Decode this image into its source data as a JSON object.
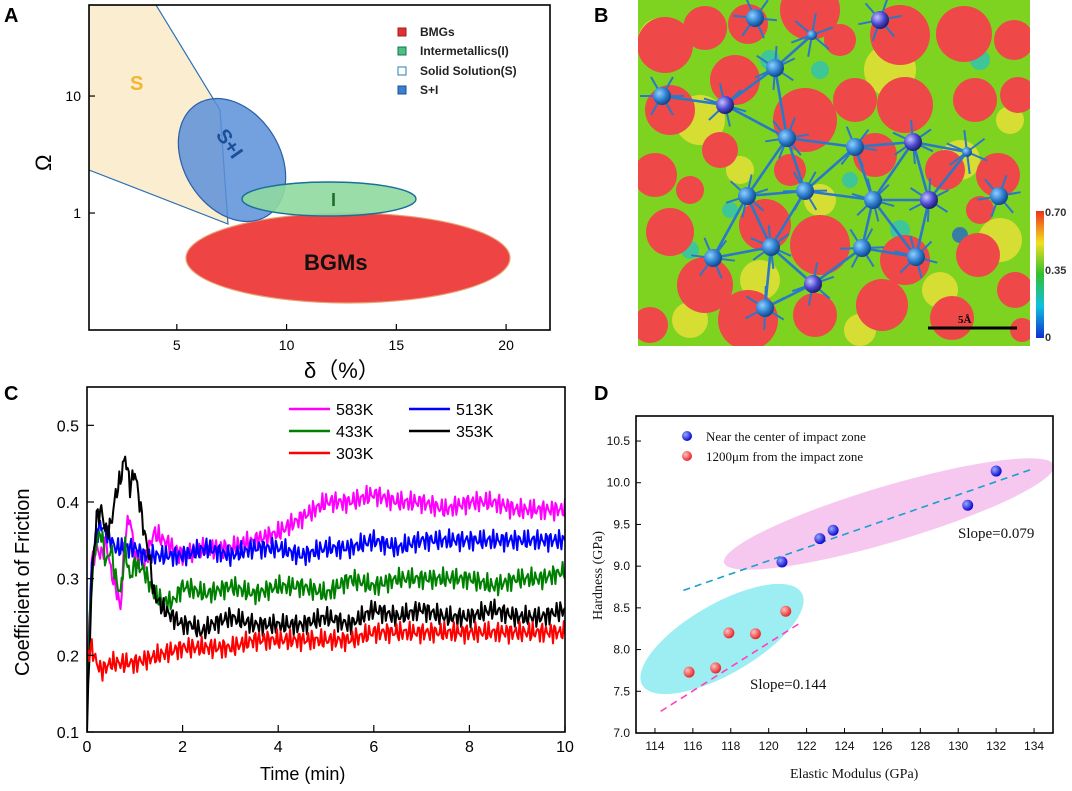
{
  "panel_labels": {
    "a": "A",
    "b": "B",
    "c": "C",
    "d": "D"
  },
  "colors": {
    "bmg": "#ef4444",
    "intermetallic": "#8fd9a0",
    "solid_solution": "#fbeed0",
    "si": "#5b8fd8",
    "c583": "#ff00ff",
    "c513": "#0000ff",
    "c433": "#008000",
    "c353": "#000000",
    "c303": "#ff0000",
    "d_blue": "#1a1aff",
    "d_red": "#ff4444",
    "d_pink": "#f6c8f0",
    "d_cyan": "#9ceef2"
  },
  "chart_data": [
    {
      "panel": "A",
      "type": "scatter",
      "title": "",
      "xlabel": "δ（%）",
      "ylabel": "Ω",
      "xlim": [
        1,
        22
      ],
      "ylim_log": [
        0.1,
        60
      ],
      "xticks": [
        "5",
        "10",
        "15",
        "20"
      ],
      "xtick_values": [
        5,
        10,
        15,
        20
      ],
      "yticks": [
        "1",
        "10"
      ],
      "ytick_values": [
        1,
        10
      ],
      "legend": [
        {
          "name": "BMGs",
          "swatch": "bmg"
        },
        {
          "name": "Intermetallics(I)",
          "swatch": "intermetallic"
        },
        {
          "name": "Solid Solution(S)",
          "swatch": "solid_solution"
        },
        {
          "name": "S+I",
          "swatch": "si"
        }
      ],
      "regions": [
        {
          "name": "S",
          "label": "S"
        },
        {
          "name": "S+I",
          "label": "S+I"
        },
        {
          "name": "I",
          "label": "I"
        },
        {
          "name": "BGMs",
          "label": "BGMs"
        }
      ]
    },
    {
      "panel": "B",
      "type": "heatmap",
      "colorbar_ticks": [
        "0.70",
        "0.35",
        "0"
      ],
      "colorbar_values": [
        0.7,
        0.35,
        0
      ],
      "scale_bar": "5Å"
    },
    {
      "panel": "C",
      "type": "line",
      "xlabel": "Time (min)",
      "ylabel": "Coefficient of Friction",
      "xlim": [
        0,
        10
      ],
      "ylim": [
        0.1,
        0.55
      ],
      "xticks": [
        "0",
        "2",
        "4",
        "6",
        "8",
        "10"
      ],
      "yticks": [
        "0.1",
        "0.2",
        "0.3",
        "0.4",
        "0.5"
      ],
      "series": [
        {
          "name": "583K",
          "color": "#ff00ff",
          "x": [
            0,
            0.1,
            0.2,
            0.3,
            0.4,
            0.5,
            0.6,
            0.7,
            0.8,
            0.9,
            1.0,
            1.2,
            1.4,
            1.6,
            1.8,
            2,
            2.5,
            3,
            3.5,
            4,
            4.5,
            5,
            5.5,
            6,
            6.5,
            7,
            7.5,
            8,
            8.5,
            9,
            9.5,
            10
          ],
          "y": [
            0.17,
            0.32,
            0.34,
            0.33,
            0.35,
            0.31,
            0.29,
            0.26,
            0.36,
            0.38,
            0.33,
            0.32,
            0.36,
            0.35,
            0.34,
            0.33,
            0.34,
            0.34,
            0.35,
            0.36,
            0.38,
            0.4,
            0.4,
            0.41,
            0.4,
            0.4,
            0.39,
            0.4,
            0.4,
            0.39,
            0.39,
            0.39
          ]
        },
        {
          "name": "513K",
          "color": "#0000ff",
          "x": [
            0,
            0.1,
            0.2,
            0.3,
            0.4,
            0.5,
            0.6,
            0.8,
            1.0,
            1.2,
            1.5,
            2,
            2.5,
            3,
            3.5,
            4,
            4.5,
            5,
            5.5,
            6,
            6.5,
            7,
            7.5,
            8,
            8.5,
            9,
            9.5,
            10
          ],
          "y": [
            0.16,
            0.32,
            0.36,
            0.37,
            0.36,
            0.35,
            0.34,
            0.34,
            0.34,
            0.33,
            0.33,
            0.33,
            0.34,
            0.33,
            0.34,
            0.34,
            0.33,
            0.34,
            0.34,
            0.35,
            0.34,
            0.35,
            0.35,
            0.35,
            0.35,
            0.35,
            0.35,
            0.35
          ]
        },
        {
          "name": "433K",
          "color": "#008000",
          "x": [
            0,
            0.1,
            0.2,
            0.3,
            0.4,
            0.5,
            0.6,
            0.7,
            0.8,
            0.9,
            1.0,
            1.2,
            1.4,
            1.6,
            1.8,
            2,
            2.5,
            3,
            3.5,
            4,
            4.5,
            5,
            5.5,
            6,
            6.5,
            7,
            7.5,
            8,
            8.5,
            9,
            9.5,
            10
          ],
          "y": [
            0.15,
            0.3,
            0.35,
            0.36,
            0.32,
            0.34,
            0.3,
            0.28,
            0.34,
            0.3,
            0.32,
            0.31,
            0.28,
            0.27,
            0.27,
            0.29,
            0.28,
            0.29,
            0.28,
            0.29,
            0.29,
            0.28,
            0.3,
            0.29,
            0.3,
            0.3,
            0.3,
            0.3,
            0.29,
            0.3,
            0.3,
            0.31
          ]
        },
        {
          "name": "353K",
          "color": "#000000",
          "x": [
            0,
            0.1,
            0.2,
            0.3,
            0.4,
            0.5,
            0.6,
            0.7,
            0.8,
            0.9,
            1.0,
            1.1,
            1.2,
            1.3,
            1.4,
            1.6,
            1.8,
            2,
            2.2,
            2.4,
            2.6,
            3,
            3.5,
            4,
            4.5,
            5,
            5.5,
            6,
            6.5,
            7,
            7.5,
            8,
            8.5,
            9,
            9.5,
            10
          ],
          "y": [
            0.1,
            0.3,
            0.38,
            0.39,
            0.36,
            0.37,
            0.41,
            0.43,
            0.46,
            0.42,
            0.44,
            0.4,
            0.36,
            0.33,
            0.28,
            0.26,
            0.25,
            0.24,
            0.24,
            0.23,
            0.24,
            0.25,
            0.24,
            0.24,
            0.24,
            0.25,
            0.24,
            0.26,
            0.25,
            0.26,
            0.25,
            0.25,
            0.26,
            0.25,
            0.25,
            0.26
          ]
        },
        {
          "name": "303K",
          "color": "#ff0000",
          "x": [
            0,
            0.1,
            0.2,
            0.3,
            0.5,
            0.8,
            1.0,
            1.5,
            2,
            2.5,
            3,
            3.5,
            4,
            4.5,
            5,
            5.5,
            6,
            6.5,
            7,
            7.5,
            8,
            8.5,
            9,
            9.5,
            10
          ],
          "y": [
            0.2,
            0.21,
            0.19,
            0.18,
            0.19,
            0.19,
            0.19,
            0.2,
            0.21,
            0.21,
            0.21,
            0.22,
            0.22,
            0.22,
            0.22,
            0.22,
            0.23,
            0.23,
            0.23,
            0.23,
            0.23,
            0.23,
            0.23,
            0.23,
            0.23
          ]
        }
      ]
    },
    {
      "panel": "D",
      "type": "scatter",
      "xlabel": "Elastic Modulus (GPa)",
      "ylabel": "Hardness (GPa)",
      "xlim": [
        113,
        135
      ],
      "ylim": [
        7.0,
        10.8
      ],
      "xticks": [
        "114",
        "116",
        "118",
        "120",
        "122",
        "124",
        "126",
        "128",
        "130",
        "132",
        "134"
      ],
      "yticks": [
        "7.0",
        "7.5",
        "8.0",
        "8.5",
        "9.0",
        "9.5",
        "10.0",
        "10.5"
      ],
      "series": [
        {
          "name": "Near the center of impact zone",
          "color": "#1a1aff",
          "points": [
            [
              120.7,
              9.05
            ],
            [
              122.7,
              9.33
            ],
            [
              123.4,
              9.43
            ],
            [
              130.5,
              9.73
            ],
            [
              132.0,
              10.14
            ]
          ],
          "fit_x": [
            115.5,
            134
          ],
          "fit_slope": 0.079,
          "fit_intercept": -0.415,
          "slope_label": "Slope=0.079"
        },
        {
          "name": "1200μm from the impact zone",
          "color": "#ff4444",
          "points": [
            [
              115.8,
              7.73
            ],
            [
              117.2,
              7.78
            ],
            [
              117.9,
              8.2
            ],
            [
              119.3,
              8.19
            ],
            [
              120.9,
              8.46
            ]
          ],
          "fit_x": [
            114.3,
            121.7
          ],
          "fit_slope": 0.144,
          "fit_intercept": -9.2,
          "slope_label": "Slope=0.144"
        }
      ]
    }
  ]
}
